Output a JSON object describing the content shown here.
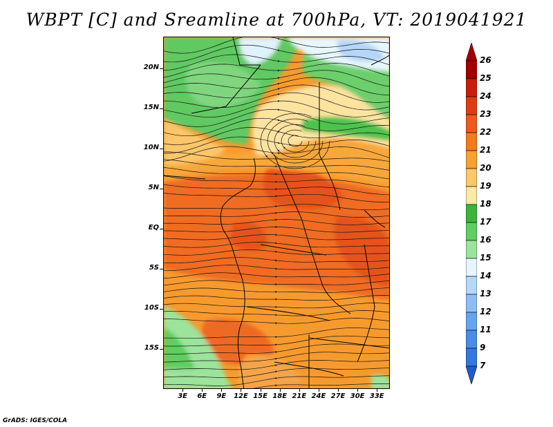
{
  "title": "WBPT [C] and Sreamline at 700hPa, VT: 2019041921",
  "footer": "GrADS: IGES/COLA",
  "map": {
    "variable": "Wet-bulb potential temperature",
    "level": "700hPa",
    "lat_range": [
      -20,
      24
    ],
    "lon_range": [
      0,
      35
    ],
    "lat_labels": [
      "20N",
      "15N",
      "10N",
      "5N",
      "EQ",
      "5S",
      "10S",
      "15S"
    ],
    "lat_values": [
      20,
      15,
      10,
      5,
      0,
      -5,
      -10,
      -15
    ],
    "lon_labels": [
      "3E",
      "6E",
      "9E",
      "12E",
      "15E",
      "18E",
      "21E",
      "24E",
      "27E",
      "30E",
      "33E"
    ],
    "lon_values": [
      3,
      6,
      9,
      12,
      15,
      18,
      21,
      24,
      27,
      30,
      33
    ]
  },
  "colorbar": {
    "labels": [
      "26",
      "25",
      "24",
      "23",
      "22",
      "21",
      "20",
      "19",
      "18",
      "17",
      "16",
      "15",
      "14",
      "13",
      "12",
      "11",
      "9",
      "7"
    ],
    "colors": {
      "c26": "#a50000",
      "c25": "#c81e0a",
      "c24": "#e03c14",
      "c23": "#ee5a1e",
      "c22": "#f57a1e",
      "c21": "#f8a032",
      "c20": "#fbc869",
      "c19": "#fde9a6",
      "c18": "#3cb43c",
      "c17": "#5fcd5f",
      "c16": "#9ce39c",
      "c15": "#e6f5ff",
      "c14": "#b4d7fa",
      "c13": "#8cbef5",
      "c12": "#64a5f0",
      "c11": "#4b8ceb",
      "c9": "#3278e1",
      "c7": "#1e5ad2"
    }
  }
}
